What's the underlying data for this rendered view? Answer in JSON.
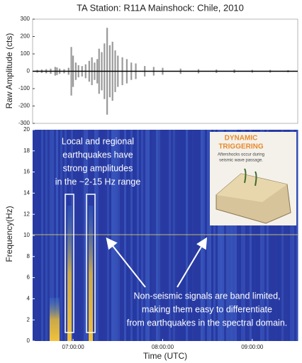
{
  "chart_data": [
    {
      "type": "waveform",
      "title": "TA Station: R11A Mainshock: Chile, 2010",
      "y_label": "Raw Amplitude (cts)",
      "ylim": [
        -300,
        300
      ],
      "yticks": [
        -300,
        -200,
        -100,
        0,
        100,
        200,
        300
      ],
      "xlim": [
        6.548,
        9.508
      ],
      "x": [
        6.6,
        6.65,
        6.7,
        6.75,
        6.8,
        6.82,
        6.85,
        6.9,
        6.95,
        6.98,
        7.0,
        7.03,
        7.06,
        7.1,
        7.14,
        7.18,
        7.21,
        7.24,
        7.27,
        7.29,
        7.32,
        7.35,
        7.38,
        7.41,
        7.44,
        7.47,
        7.5,
        7.55,
        7.6,
        7.65,
        7.7,
        7.8,
        7.9,
        8.0,
        8.2,
        8.4,
        8.6,
        8.8,
        9.0,
        9.2,
        9.4
      ],
      "values": [
        8,
        10,
        12,
        15,
        25,
        22,
        15,
        12,
        20,
        140,
        90,
        50,
        35,
        30,
        40,
        60,
        80,
        50,
        70,
        130,
        110,
        160,
        250,
        150,
        170,
        120,
        90,
        80,
        70,
        50,
        45,
        30,
        25,
        20,
        15,
        12,
        10,
        10,
        8,
        8,
        6
      ],
      "color": "#9a9a9a"
    },
    {
      "type": "spectrogram",
      "x_label": "Time (UTC)",
      "y_label": "Frequency(Hz)",
      "xlim": [
        6.548,
        9.508
      ],
      "xticks": [
        {
          "value": 7,
          "label": "07:00:00"
        },
        {
          "value": 8,
          "label": "08:00:00"
        },
        {
          "value": 9,
          "label": "09:00:00"
        }
      ],
      "ylim": [
        0,
        20
      ],
      "yticks": [
        0,
        2,
        4,
        6,
        8,
        10,
        12,
        14,
        16,
        18,
        20
      ],
      "annotations": [
        [
          "Local and regional",
          "earthquakes have",
          "strong amplitudes",
          "in the ~2-15 Hz range"
        ],
        [
          "Non-seismic signals are band limited,",
          "making them easy to differentiate",
          "from earthquakes in the spectral domain."
        ]
      ],
      "inset": {
        "title": [
          "DYNAMIC",
          "TRIGGERING"
        ],
        "caption": [
          "Aftershocks occur during",
          "seismic wave passage."
        ]
      }
    }
  ]
}
